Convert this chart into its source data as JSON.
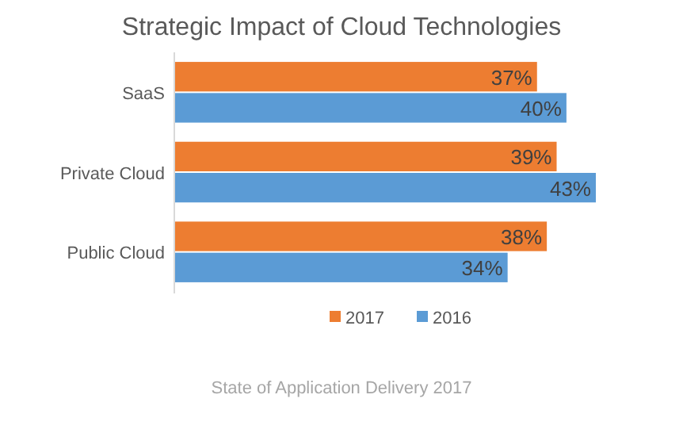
{
  "chart_data": {
    "type": "bar",
    "orientation": "horizontal",
    "title": "Strategic Impact of Cloud Technologies",
    "categories": [
      "SaaS",
      "Private Cloud",
      "Public Cloud"
    ],
    "series": [
      {
        "name": "2017",
        "color": "#ed7d31",
        "values": [
          37,
          39,
          38
        ],
        "value_labels": [
          "37%",
          "39%",
          "38%"
        ]
      },
      {
        "name": "2016",
        "color": "#5b9bd5",
        "values": [
          40,
          43,
          34
        ],
        "value_labels": [
          "40%",
          "43%",
          "34%"
        ]
      }
    ],
    "legend": "bottom",
    "annotations": [
      "State of Application Delivery 2017"
    ]
  }
}
